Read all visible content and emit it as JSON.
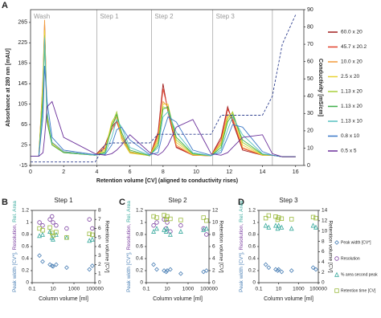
{
  "chart_data": [
    {
      "type": "line",
      "panel": "A",
      "ylabel": "Absorbance at 280 nm [mAU]",
      "y2label": "Conductivity [mS/cm]",
      "xlabel": "Retention volume [CV] (aligned to conductivity rises)",
      "section_labels": [
        "Wash",
        "Step 1",
        "Step 2",
        "Step 3"
      ],
      "dividers": [
        4,
        7.3,
        11,
        14.6
      ],
      "xlim": [
        0,
        16.5
      ],
      "xticks": [
        0,
        2,
        4,
        6,
        8,
        10,
        12,
        14,
        16
      ],
      "ylim": [
        -15,
        290
      ],
      "yticks": [
        -15,
        25,
        65,
        105,
        145,
        185,
        225,
        265
      ],
      "y2lim": [
        0,
        90
      ],
      "y2ticks": [
        0,
        10,
        20,
        30,
        40,
        50,
        60,
        70,
        80,
        90
      ],
      "x": [
        0,
        0.5,
        0.75,
        0.85,
        1,
        1.3,
        2,
        3.9,
        4.5,
        4.9,
        5.2,
        5.5,
        6,
        7.2,
        7.7,
        8,
        8.3,
        8.8,
        9.8,
        10.9,
        11.5,
        11.9,
        12.2,
        12.8,
        14,
        14.6,
        15.2,
        16
      ],
      "series": [
        {
          "name": "60.0 x 20",
          "color": "#a11d1d",
          "values": [
            3,
            3,
            150,
            265,
            80,
            30,
            12,
            5,
            25,
            60,
            72,
            40,
            10,
            4,
            50,
            145,
            90,
            20,
            5,
            4,
            40,
            100,
            70,
            15,
            5,
            5,
            2,
            2
          ]
        },
        {
          "name": "45.7 x 20.2",
          "color": "#e0402c",
          "values": [
            3,
            3,
            140,
            255,
            75,
            30,
            12,
            5,
            20,
            55,
            70,
            45,
            12,
            4,
            45,
            135,
            95,
            22,
            5,
            4,
            35,
            95,
            75,
            18,
            5,
            5,
            2,
            2
          ]
        },
        {
          "name": "10.0 x 20",
          "color": "#f29a3b",
          "values": [
            3,
            3,
            160,
            270,
            85,
            28,
            10,
            5,
            18,
            62,
            80,
            40,
            10,
            4,
            40,
            110,
            100,
            25,
            5,
            4,
            30,
            85,
            80,
            20,
            5,
            5,
            2,
            2
          ]
        },
        {
          "name": "2.5 x 20",
          "color": "#e8d233",
          "values": [
            3,
            3,
            150,
            250,
            80,
            28,
            10,
            5,
            15,
            70,
            85,
            35,
            9,
            4,
            35,
            105,
            105,
            30,
            6,
            4,
            28,
            80,
            88,
            25,
            5,
            5,
            2,
            2
          ]
        },
        {
          "name": "1.13 x 20",
          "color": "#a8cf3a",
          "values": [
            3,
            3,
            130,
            240,
            70,
            25,
            10,
            5,
            12,
            65,
            90,
            45,
            12,
            4,
            30,
            100,
            95,
            35,
            7,
            4,
            25,
            75,
            90,
            30,
            6,
            5,
            2,
            2
          ]
        },
        {
          "name": "1.13 x 20",
          "color": "#3fae49",
          "values": [
            3,
            3,
            120,
            230,
            70,
            25,
            10,
            5,
            10,
            60,
            85,
            50,
            15,
            4,
            25,
            95,
            100,
            40,
            8,
            4,
            20,
            70,
            85,
            35,
            7,
            5,
            2,
            2
          ]
        },
        {
          "name": "1.13 x 10",
          "color": "#56c1c0",
          "values": [
            3,
            3,
            100,
            235,
            90,
            30,
            12,
            5,
            8,
            40,
            75,
            60,
            20,
            5,
            20,
            80,
            90,
            50,
            10,
            4,
            15,
            55,
            80,
            45,
            8,
            5,
            2,
            2
          ]
        },
        {
          "name": "0.8 x 10",
          "color": "#3c78c8",
          "values": [
            3,
            3,
            80,
            180,
            110,
            40,
            15,
            6,
            6,
            25,
            55,
            60,
            35,
            6,
            10,
            50,
            80,
            70,
            15,
            5,
            10,
            40,
            65,
            60,
            12,
            5,
            2,
            2
          ]
        },
        {
          "name": "0.5 x 5",
          "color": "#6a2f9a",
          "values": [
            3,
            3,
            10,
            40,
            100,
            110,
            40,
            8,
            5,
            8,
            15,
            25,
            45,
            10,
            5,
            12,
            25,
            60,
            75,
            8,
            5,
            10,
            20,
            40,
            45,
            8,
            2,
            2
          ]
        },
        {
          "axis": "y2",
          "dash": true,
          "color": "#2e3f8f",
          "values": [
            2,
            2,
            2,
            2,
            2,
            2,
            2,
            2,
            12,
            13,
            13,
            13,
            13,
            13,
            18,
            18,
            18,
            18,
            18,
            18,
            29,
            29,
            29,
            29,
            29,
            40,
            70,
            87
          ]
        }
      ]
    },
    {
      "type": "scatter",
      "panel": "B",
      "title": "Step 1",
      "xscale": "log",
      "legend": false,
      "xlabel": "Column volume [ml]",
      "ylabel": [
        {
          "text": "Peak width [CV*],",
          "color": "#4a7fb5"
        },
        {
          "text": "Resolution,",
          "color": "#7b3fa0"
        },
        {
          "text": "Rel. Area",
          "color": "#3aaa9e"
        }
      ],
      "y2label": "Retention volume [CV]",
      "xlim": [
        0.1,
        100000
      ],
      "xticks": [
        0.1,
        10,
        1000,
        100000
      ],
      "ylim": [
        0,
        1.2
      ],
      "yticks": [
        0,
        0.2,
        0.4,
        0.6,
        0.8,
        1,
        1.2
      ],
      "y2lim": [
        0,
        8
      ],
      "y2ticks": [
        0,
        1,
        2,
        3,
        4,
        5,
        6,
        7,
        8
      ],
      "x": [
        0.5,
        1,
        5,
        8,
        10,
        20,
        200,
        30000,
        57000
      ],
      "series": [
        {
          "name": "Peak width [CV*]",
          "marker": "diamond",
          "color": "#4a7fb5",
          "values": [
            0.45,
            0.35,
            0.3,
            0.28,
            0.27,
            0.3,
            0.25,
            0.22,
            0.28
          ]
        },
        {
          "name": "Resolution",
          "marker": "circle",
          "color": "#7b3fa0",
          "values": [
            1.0,
            0.95,
            1.05,
            1.1,
            1.0,
            0.95,
            0.9,
            1.05,
            0.9
          ]
        },
        {
          "name": "% area second peak",
          "marker": "triangle",
          "color": "#3aaa9e",
          "values": [
            0.78,
            0.8,
            0.85,
            0.75,
            0.72,
            0.8,
            0.75,
            0.7,
            0.72
          ]
        },
        {
          "name": "Retention time [CV]",
          "marker": "square",
          "color": "#9aba3c",
          "axis": "y2",
          "values": [
            6.0,
            5.8,
            6.1,
            5.5,
            5.2,
            5.6,
            5.0,
            5.4,
            5.3
          ]
        }
      ]
    },
    {
      "type": "scatter",
      "panel": "C",
      "title": "Step 2",
      "xscale": "log",
      "legend": false,
      "xlabel": "Column volume [ml]",
      "ylabel": [
        {
          "text": "Peak width [CV*],",
          "color": "#4a7fb5"
        },
        {
          "text": "Resolution,",
          "color": "#7b3fa0"
        },
        {
          "text": "Rel. Area",
          "color": "#3aaa9e"
        }
      ],
      "y2label": "Retention volume [CV]",
      "xlim": [
        0.1,
        100000
      ],
      "xticks": [
        0.1,
        10,
        1000,
        100000
      ],
      "ylim": [
        0,
        1.2
      ],
      "yticks": [
        0,
        0.2,
        0.4,
        0.6,
        0.8,
        1,
        1.2
      ],
      "y2lim": [
        0,
        12
      ],
      "y2ticks": [
        0,
        2,
        4,
        6,
        8,
        10,
        12
      ],
      "x": [
        0.5,
        1,
        5,
        8,
        10,
        20,
        200,
        30000,
        57000
      ],
      "series": [
        {
          "name": "Peak width [CV*]",
          "marker": "diamond",
          "color": "#4a7fb5",
          "values": [
            0.3,
            0.22,
            0.2,
            0.18,
            0.2,
            0.22,
            0.15,
            0.18,
            0.2
          ]
        },
        {
          "name": "Resolution",
          "marker": "circle",
          "color": "#7b3fa0",
          "values": [
            0.95,
            1.0,
            1.05,
            0.9,
            1.0,
            0.85,
            0.95,
            0.9,
            0.8
          ]
        },
        {
          "name": "% area second peak",
          "marker": "triangle",
          "color": "#3aaa9e",
          "values": [
            0.85,
            0.9,
            0.88,
            0.85,
            0.9,
            0.8,
            0.85,
            0.88,
            0.9
          ]
        },
        {
          "name": "Retention time [CV]",
          "marker": "square",
          "color": "#9aba3c",
          "axis": "y2",
          "values": [
            11,
            10.8,
            11.2,
            10.5,
            11,
            10.6,
            10.4,
            10.8,
            10.3
          ]
        }
      ]
    },
    {
      "type": "scatter",
      "panel": "D",
      "title": "Step 3",
      "xscale": "log",
      "legend": true,
      "xlabel": "Column volume [ml]",
      "ylabel": [
        {
          "text": "Peak width [CV*],",
          "color": "#4a7fb5"
        },
        {
          "text": "Resolution,",
          "color": "#7b3fa0"
        },
        {
          "text": "Rel. Area",
          "color": "#3aaa9e"
        }
      ],
      "y2label": "Retention volume [CV]",
      "xlim": [
        0.1,
        100000
      ],
      "xticks": [
        0.1,
        10,
        1000,
        100000
      ],
      "ylim": [
        0,
        1.2
      ],
      "yticks": [
        0,
        0.2,
        0.4,
        0.6,
        0.8,
        1,
        1.2
      ],
      "y2lim": [
        0,
        14
      ],
      "y2ticks": [
        0,
        2,
        4,
        6,
        8,
        10,
        12,
        14
      ],
      "x": [
        0.5,
        1,
        5,
        8,
        10,
        20,
        200,
        30000,
        57000
      ],
      "series": [
        {
          "name": "Peak width [CV*]",
          "marker": "diamond",
          "color": "#4a7fb5",
          "values": [
            0.3,
            0.25,
            0.22,
            0.2,
            0.22,
            0.18,
            0.2,
            0.25,
            0.22
          ]
        },
        {
          "name": "Resolution",
          "marker": "circle",
          "color": "#7b3fa0",
          "values": [
            null,
            null,
            null,
            null,
            null,
            null,
            null,
            null,
            null
          ]
        },
        {
          "name": "% area second peak",
          "marker": "triangle",
          "color": "#3aaa9e",
          "values": [
            0.95,
            0.92,
            0.95,
            0.9,
            0.95,
            0.92,
            0.9,
            0.95,
            0.92
          ]
        },
        {
          "name": "Retention time [CV]",
          "marker": "square",
          "color": "#9aba3c",
          "axis": "y2",
          "values": [
            12.5,
            13,
            12.8,
            12.2,
            12.6,
            12.4,
            12.3,
            12.7,
            12.5
          ]
        }
      ]
    }
  ]
}
